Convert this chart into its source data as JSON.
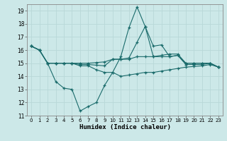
{
  "xlabel": "Humidex (Indice chaleur)",
  "bg_color": "#cce8e8",
  "grid_color": "#b8d8d8",
  "line_color": "#1a6b6b",
  "xlim": [
    -0.5,
    23.5
  ],
  "ylim": [
    11,
    19.5
  ],
  "yticks": [
    11,
    12,
    13,
    14,
    15,
    16,
    17,
    18,
    19
  ],
  "xticks": [
    0,
    1,
    2,
    3,
    4,
    5,
    6,
    7,
    8,
    9,
    10,
    11,
    12,
    13,
    14,
    15,
    16,
    17,
    18,
    19,
    20,
    21,
    22,
    23
  ],
  "line1_x": [
    0,
    1,
    2,
    3,
    4,
    5,
    6,
    7,
    8,
    9,
    10,
    11,
    12,
    13,
    14,
    15,
    16,
    17,
    18,
    19,
    20,
    21,
    22,
    23
  ],
  "line1_y": [
    16.3,
    16.0,
    15.0,
    13.6,
    13.1,
    13.0,
    11.35,
    11.7,
    12.0,
    13.3,
    14.3,
    14.0,
    14.1,
    14.2,
    14.3,
    14.3,
    14.4,
    14.5,
    14.6,
    14.7,
    14.75,
    14.8,
    14.9,
    14.7
  ],
  "line2_x": [
    0,
    1,
    2,
    3,
    4,
    5,
    6,
    7,
    8,
    9,
    10,
    11,
    12,
    13,
    14,
    15,
    16,
    17,
    18,
    19,
    20,
    21,
    22,
    23
  ],
  "line2_y": [
    16.3,
    16.0,
    15.0,
    15.0,
    15.0,
    15.0,
    15.0,
    15.0,
    15.05,
    15.1,
    15.3,
    15.3,
    15.3,
    15.5,
    15.5,
    15.5,
    15.5,
    15.5,
    15.6,
    14.9,
    14.9,
    14.9,
    15.0,
    14.7
  ],
  "line3_x": [
    0,
    1,
    2,
    3,
    4,
    5,
    6,
    7,
    8,
    9,
    10,
    11,
    12,
    13,
    14,
    15,
    16,
    17,
    18,
    19,
    20,
    21,
    22,
    23
  ],
  "line3_y": [
    16.3,
    16.0,
    15.0,
    15.0,
    15.0,
    15.0,
    14.8,
    14.8,
    14.5,
    14.3,
    14.3,
    15.5,
    17.7,
    19.3,
    17.8,
    16.3,
    16.4,
    15.5,
    15.6,
    15.0,
    15.0,
    15.0,
    15.0,
    14.7
  ],
  "line4_x": [
    0,
    1,
    2,
    3,
    4,
    5,
    6,
    7,
    8,
    9,
    10,
    11,
    12,
    13,
    14,
    15,
    16,
    17,
    18,
    19,
    20,
    21,
    22,
    23
  ],
  "line4_y": [
    16.3,
    16.0,
    15.0,
    15.0,
    15.0,
    15.0,
    14.9,
    14.9,
    14.85,
    14.8,
    15.3,
    15.3,
    15.4,
    16.6,
    17.8,
    15.5,
    15.6,
    15.7,
    15.7,
    15.0,
    15.0,
    15.0,
    15.0,
    14.7
  ]
}
